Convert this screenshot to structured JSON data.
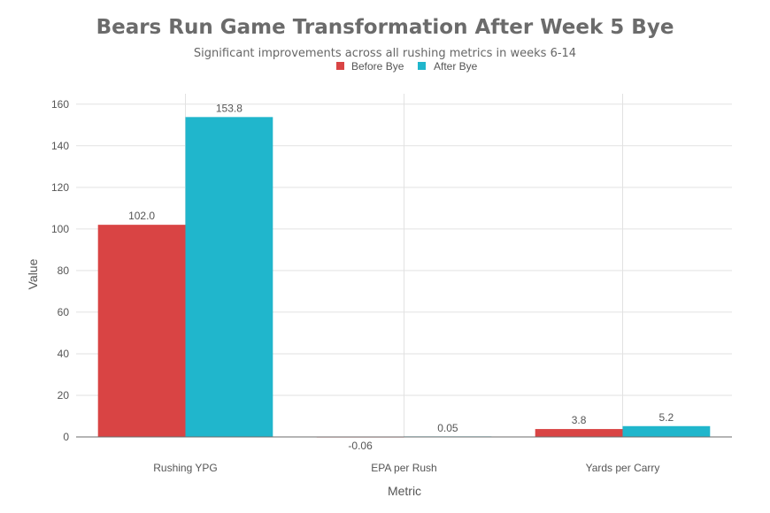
{
  "chart_data": {
    "type": "bar",
    "title": "Bears Run Game Transformation After Week 5 Bye",
    "subtitle": "Significant improvements across all rushing metrics in weeks 6-14",
    "xlabel": "Metric",
    "ylabel": "Value",
    "categories": [
      "Rushing YPG",
      "EPA per Rush",
      "Yards per Carry"
    ],
    "series": [
      {
        "name": "Before Bye",
        "color": "#d94444",
        "values": [
          102.0,
          -0.06,
          3.8
        ],
        "labels": [
          "102.0",
          "-0.06",
          "3.8"
        ]
      },
      {
        "name": "After Bye",
        "color": "#20b6cc",
        "values": [
          153.8,
          0.05,
          5.2
        ],
        "labels": [
          "153.8",
          "0.05",
          "5.2"
        ]
      }
    ],
    "ylim": [
      0,
      165
    ],
    "yticks": [
      0,
      20,
      40,
      60,
      80,
      100,
      120,
      140,
      160
    ],
    "ytick_labels": [
      "0",
      "20",
      "40",
      "60",
      "80",
      "100",
      "120",
      "140",
      "160"
    ],
    "grid": true,
    "legend_position": "top-center"
  }
}
